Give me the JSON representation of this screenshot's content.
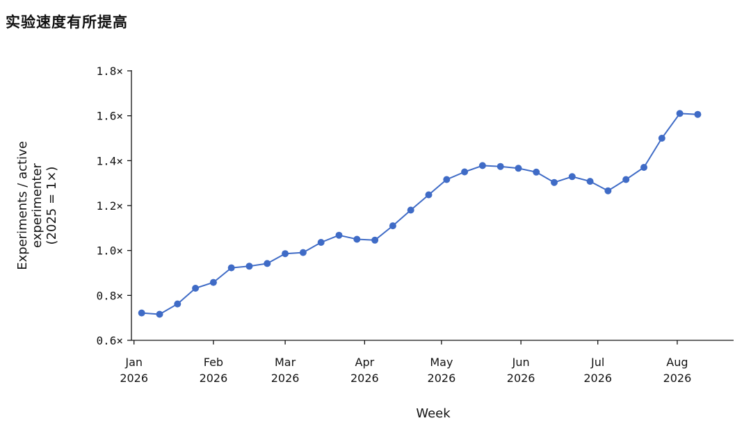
{
  "page_title": "实验速度有所提高",
  "chart_data": {
    "type": "line",
    "title": "实验速度有所提高",
    "xlabel": "Week",
    "ylabel_lines": [
      "Experiments / active",
      "experimenter",
      "(2025 = 1×)"
    ],
    "x_ticks": [
      {
        "date": "2026-01-01",
        "line1": "Jan",
        "line2": "2026"
      },
      {
        "date": "2026-02-01",
        "line1": "Feb",
        "line2": "2026"
      },
      {
        "date": "2026-03-01",
        "line1": "Mar",
        "line2": "2026"
      },
      {
        "date": "2026-04-01",
        "line1": "Apr",
        "line2": "2026"
      },
      {
        "date": "2026-05-01",
        "line1": "May",
        "line2": "2026"
      },
      {
        "date": "2026-06-01",
        "line1": "Jun",
        "line2": "2026"
      },
      {
        "date": "2026-07-01",
        "line1": "Jul",
        "line2": "2026"
      },
      {
        "date": "2026-08-01",
        "line1": "Aug",
        "line2": "2026"
      }
    ],
    "y_ticks": [
      {
        "value": 0.6,
        "label": "0.6×"
      },
      {
        "value": 0.8,
        "label": "0.8×"
      },
      {
        "value": 1.0,
        "label": "1.0×"
      },
      {
        "value": 1.2,
        "label": "1.2×"
      },
      {
        "value": 1.4,
        "label": "1.4×"
      },
      {
        "value": 1.6,
        "label": "1.6×"
      },
      {
        "value": 1.8,
        "label": "1.8×"
      }
    ],
    "ylim": [
      0.6,
      1.8
    ],
    "xlim": [
      "2025-12-31",
      "2026-08-23"
    ],
    "grid": false,
    "color": "#3f6bc6",
    "series": [
      {
        "points": [
          {
            "x": "2026-01-04",
            "y": 0.722
          },
          {
            "x": "2026-01-11",
            "y": 0.716
          },
          {
            "x": "2026-01-18",
            "y": 0.762
          },
          {
            "x": "2026-01-25",
            "y": 0.832
          },
          {
            "x": "2026-02-01",
            "y": 0.858
          },
          {
            "x": "2026-02-08",
            "y": 0.923
          },
          {
            "x": "2026-02-15",
            "y": 0.93
          },
          {
            "x": "2026-02-22",
            "y": 0.942
          },
          {
            "x": "2026-03-01",
            "y": 0.986
          },
          {
            "x": "2026-03-08",
            "y": 0.991
          },
          {
            "x": "2026-03-15",
            "y": 1.036
          },
          {
            "x": "2026-03-22",
            "y": 1.068
          },
          {
            "x": "2026-03-29",
            "y": 1.05
          },
          {
            "x": "2026-04-05",
            "y": 1.046
          },
          {
            "x": "2026-04-12",
            "y": 1.11
          },
          {
            "x": "2026-04-19",
            "y": 1.18
          },
          {
            "x": "2026-04-26",
            "y": 1.248
          },
          {
            "x": "2026-05-03",
            "y": 1.316
          },
          {
            "x": "2026-05-10",
            "y": 1.35
          },
          {
            "x": "2026-05-17",
            "y": 1.378
          },
          {
            "x": "2026-05-24",
            "y": 1.374
          },
          {
            "x": "2026-05-31",
            "y": 1.366
          },
          {
            "x": "2026-06-07",
            "y": 1.349
          },
          {
            "x": "2026-06-14",
            "y": 1.303
          },
          {
            "x": "2026-06-21",
            "y": 1.329
          },
          {
            "x": "2026-06-28",
            "y": 1.308
          },
          {
            "x": "2026-07-05",
            "y": 1.266
          },
          {
            "x": "2026-07-12",
            "y": 1.316
          },
          {
            "x": "2026-07-19",
            "y": 1.37
          },
          {
            "x": "2026-07-26",
            "y": 1.5
          },
          {
            "x": "2026-08-02",
            "y": 1.61
          },
          {
            "x": "2026-08-09",
            "y": 1.606
          }
        ]
      }
    ]
  }
}
